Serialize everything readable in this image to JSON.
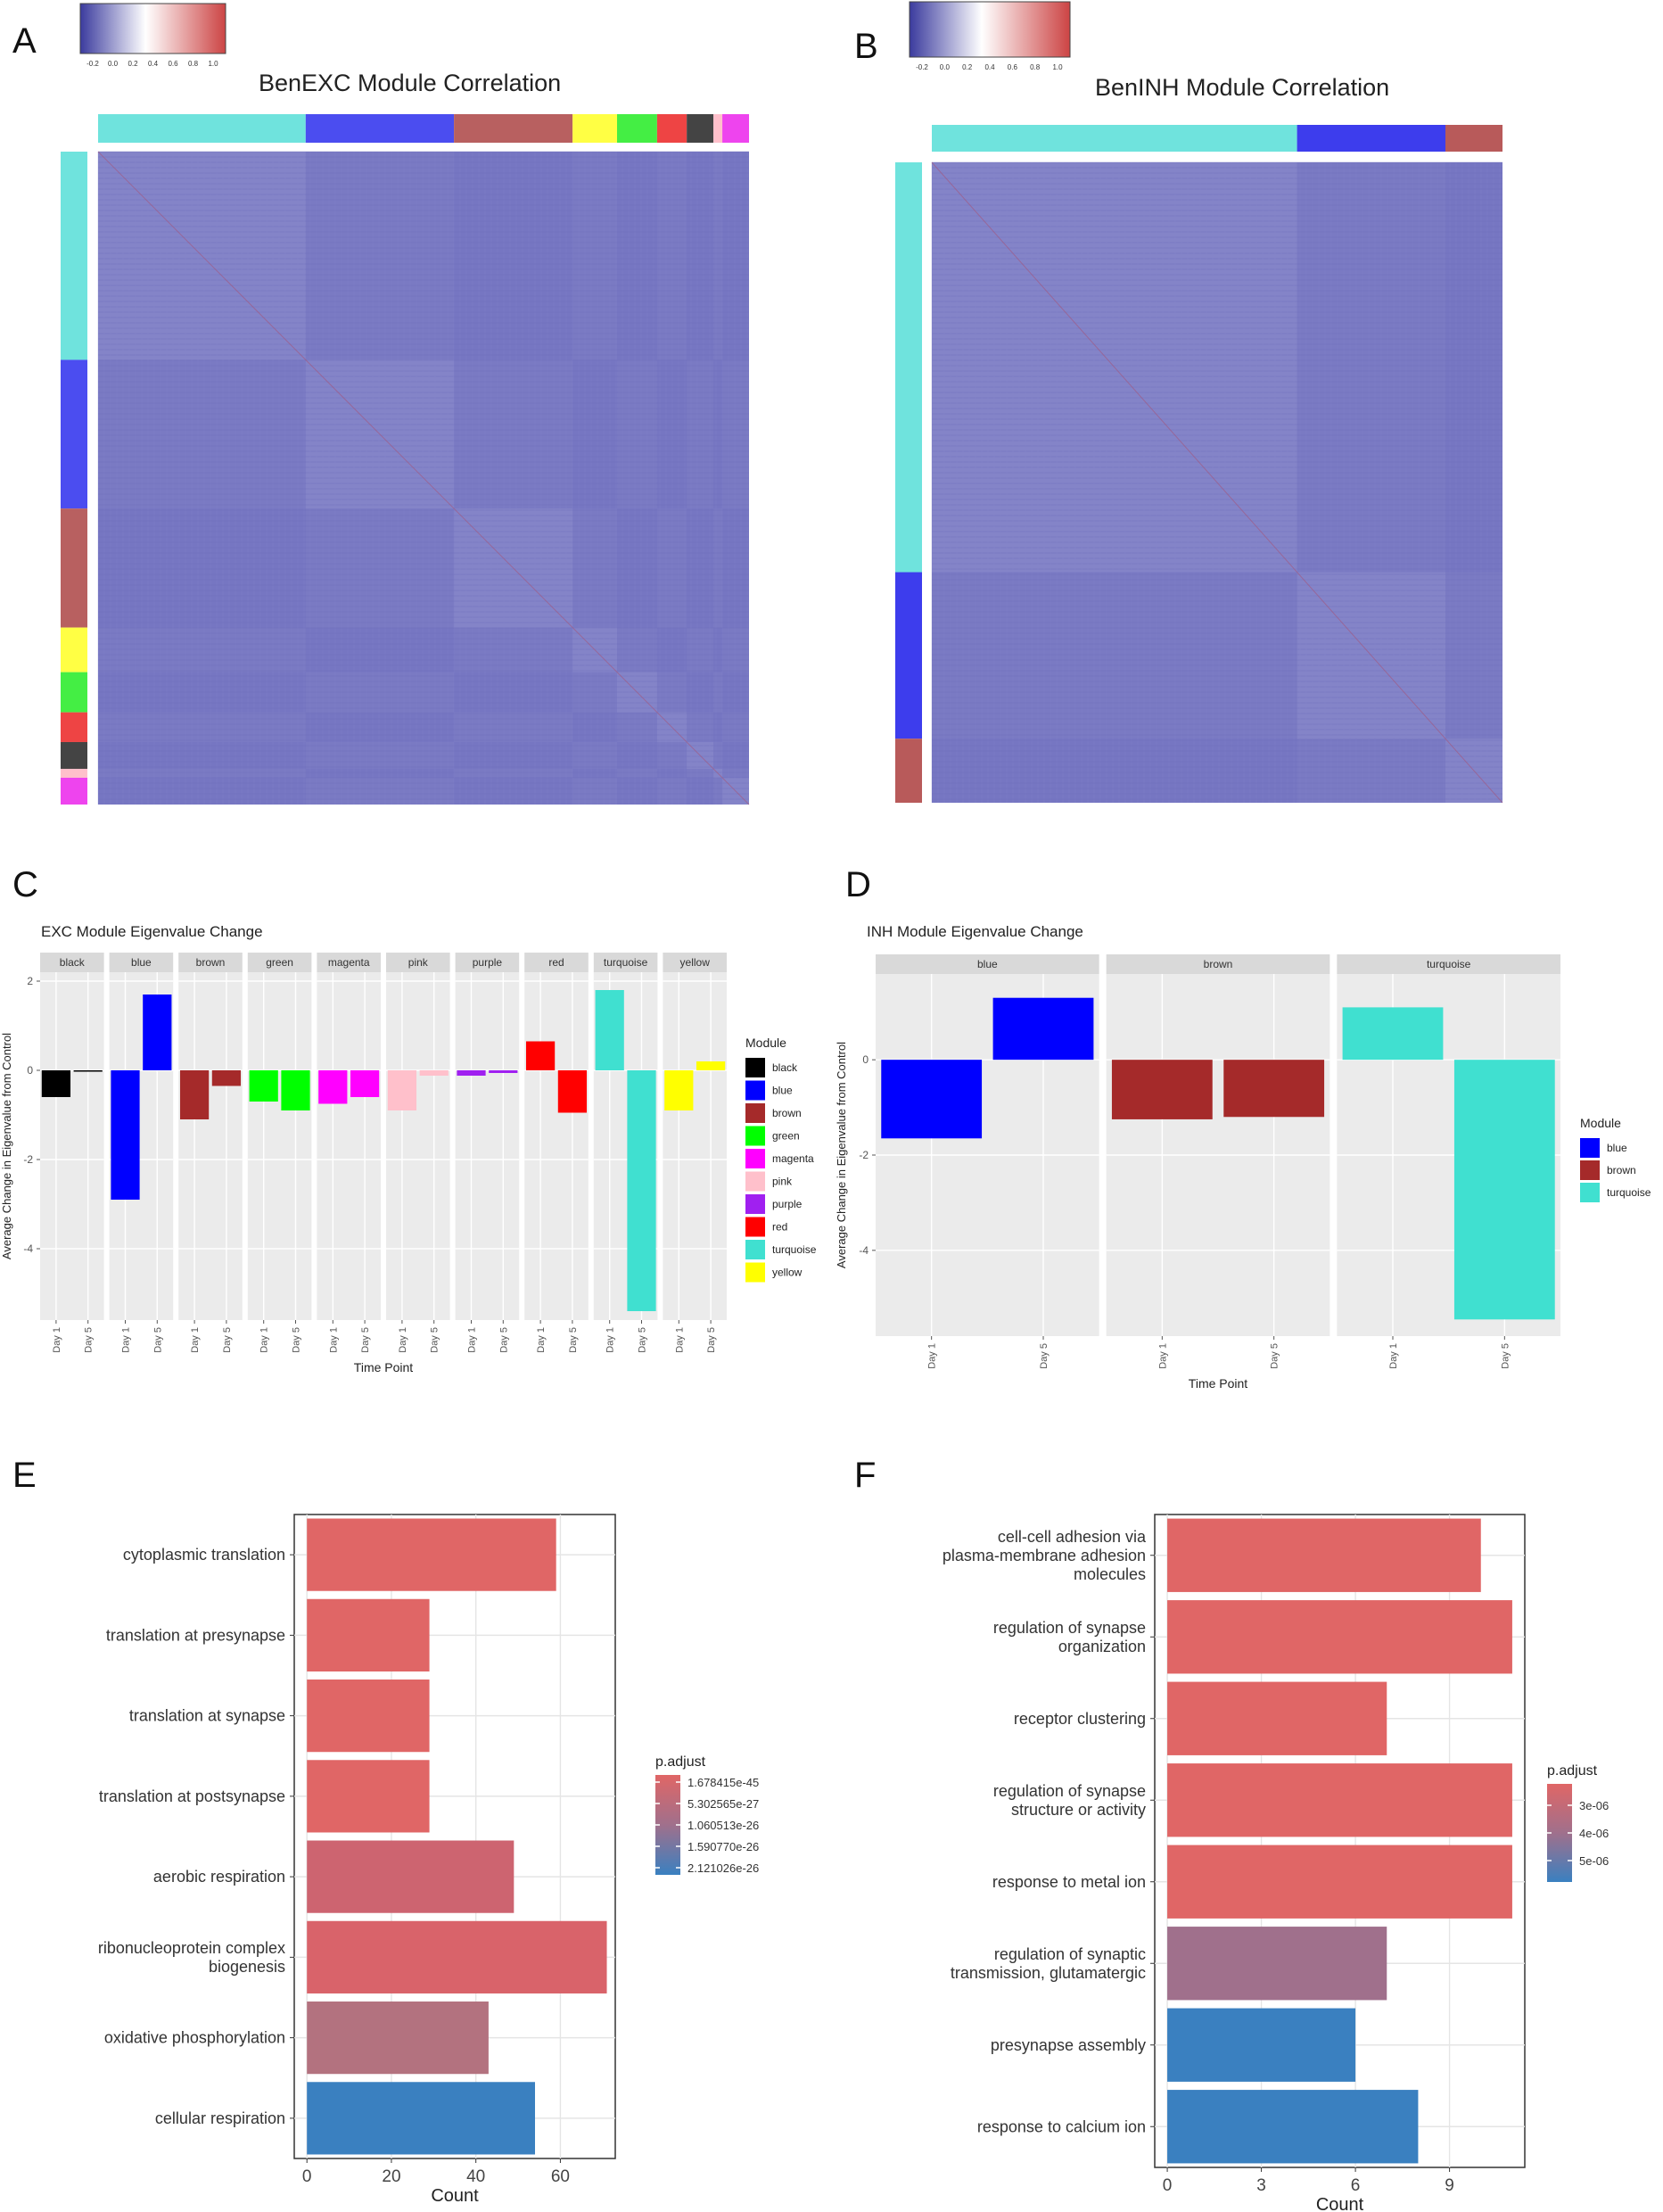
{
  "panels": {
    "A": {
      "label": "A",
      "title": "BenEXC Module Correlation",
      "colorbar_ticks": [
        "-0.2",
        "0.0",
        "0.2",
        "0.4",
        "0.6",
        "0.8",
        "1.0"
      ],
      "module_colors": [
        "#6fe3dd",
        "#4b4df0",
        "#b86060",
        "#ffff44",
        "#44ee44",
        "#ee4444",
        "#444444",
        "#ffc0cb",
        "#ee44ee"
      ],
      "module_weights": [
        1.4,
        1.0,
        0.8,
        0.3,
        0.27,
        0.2,
        0.18,
        0.06,
        0.18
      ]
    },
    "B": {
      "label": "B",
      "title": "BenINH Module Correlation",
      "colorbar_ticks": [
        "-0.2",
        "0.0",
        "0.2",
        "0.4",
        "0.6",
        "0.8",
        "1.0"
      ],
      "module_colors": [
        "#6fe3dd",
        "#3d3ded",
        "#b85a5a"
      ],
      "module_weights": [
        0.64,
        0.26,
        0.1
      ]
    },
    "C": {
      "label": "C"
    },
    "D": {
      "label": "D"
    },
    "E": {
      "label": "E"
    },
    "F": {
      "label": "F"
    }
  },
  "chart_data": [
    {
      "id": "C",
      "type": "bar",
      "title": "EXC Module Eigenvalue Change",
      "xlabel": "Time Point",
      "ylabel": "Average Change in Eigenvalue from Control",
      "categories": [
        "Day 1",
        "Day 5"
      ],
      "ylim": [
        -5.6,
        2.2
      ],
      "yticks": [
        "2",
        "0",
        "-2",
        "-4"
      ],
      "ytick_values": [
        2,
        0,
        -2,
        -4
      ],
      "legend_title": "Module",
      "facets": [
        {
          "name": "black",
          "color": "#000000",
          "values": [
            -0.6,
            -0.02
          ]
        },
        {
          "name": "blue",
          "color": "#0000ff",
          "values": [
            -2.9,
            1.7
          ]
        },
        {
          "name": "brown",
          "color": "#a52a2a",
          "values": [
            -1.1,
            -0.35
          ]
        },
        {
          "name": "green",
          "color": "#00ff00",
          "values": [
            -0.7,
            -0.9
          ]
        },
        {
          "name": "magenta",
          "color": "#ff00ff",
          "values": [
            -0.75,
            -0.6
          ]
        },
        {
          "name": "pink",
          "color": "#ffc0cb",
          "values": [
            -0.9,
            -0.12
          ]
        },
        {
          "name": "purple",
          "color": "#a020f0",
          "values": [
            -0.12,
            -0.06
          ]
        },
        {
          "name": "red",
          "color": "#ff0000",
          "values": [
            0.65,
            -0.95
          ]
        },
        {
          "name": "turquoise",
          "color": "#40e0d0",
          "values": [
            1.8,
            -5.4
          ]
        },
        {
          "name": "yellow",
          "color": "#ffff00",
          "values": [
            -0.9,
            0.2
          ]
        }
      ]
    },
    {
      "id": "D",
      "type": "bar",
      "title": "INH Module Eigenvalue Change",
      "xlabel": "Time Point",
      "ylabel": "Average Change in Eigenvalue from Control",
      "categories": [
        "Day 1",
        "Day 5"
      ],
      "ylim": [
        -5.8,
        1.8
      ],
      "yticks": [
        "0",
        "-2",
        "-4"
      ],
      "ytick_values": [
        0,
        -2,
        -4
      ],
      "legend_title": "Module",
      "facets": [
        {
          "name": "blue",
          "color": "#0000ff",
          "values": [
            -1.65,
            1.3
          ]
        },
        {
          "name": "brown",
          "color": "#a52a2a",
          "values": [
            -1.25,
            -1.2
          ]
        },
        {
          "name": "turquoise",
          "color": "#40e0d0",
          "values": [
            1.1,
            -5.45
          ]
        }
      ]
    },
    {
      "id": "E",
      "type": "bar",
      "orientation": "horizontal",
      "xlabel": "Count",
      "xlim": [
        -3,
        73
      ],
      "xticks": [
        "0",
        "20",
        "40",
        "60"
      ],
      "xtick_values": [
        0,
        20,
        40,
        60
      ],
      "categories": [
        "cytoplasmic translation",
        "translation at presynapse",
        "translation at synapse",
        "translation at postsynapse",
        "aerobic respiration",
        "ribonucleoprotein complex\nbiogenesis",
        "oxidative phosphorylation",
        "cellular respiration"
      ],
      "values": [
        59,
        29,
        29,
        29,
        49,
        71,
        43,
        54
      ],
      "colors": [
        "#e06666",
        "#e06666",
        "#e06666",
        "#e06666",
        "#cd6470",
        "#d9636a",
        "#b3727f",
        "#3a80c0"
      ],
      "legend_title": "p.adjust",
      "legend_labels": [
        "1.678415e-45",
        "5.302565e-27",
        "1.060513e-26",
        "1.590770e-26",
        "2.121026e-26"
      ]
    },
    {
      "id": "F",
      "type": "bar",
      "orientation": "horizontal",
      "xlabel": "Count",
      "xlim": [
        -0.4,
        11.4
      ],
      "xticks": [
        "0",
        "3",
        "6",
        "9"
      ],
      "xtick_values": [
        0,
        3,
        6,
        9
      ],
      "categories": [
        "cell-cell adhesion via\nplasma-membrane adhesion\nmolecules",
        "regulation of synapse\norganization",
        "receptor clustering",
        "regulation of synapse\nstructure or activity",
        "response to metal ion",
        "regulation of synaptic\ntransmission, glutamatergic",
        "presynapse assembly",
        "response to calcium ion"
      ],
      "values": [
        10,
        11,
        7,
        11,
        11,
        7,
        6,
        8
      ],
      "colors": [
        "#e06666",
        "#e06666",
        "#e06666",
        "#e06666",
        "#e06666",
        "#a0708c",
        "#3a80c0",
        "#3a80c0"
      ],
      "legend_title": "p.adjust",
      "legend_labels": [
        "3e-06",
        "4e-06",
        "5e-06"
      ]
    }
  ]
}
